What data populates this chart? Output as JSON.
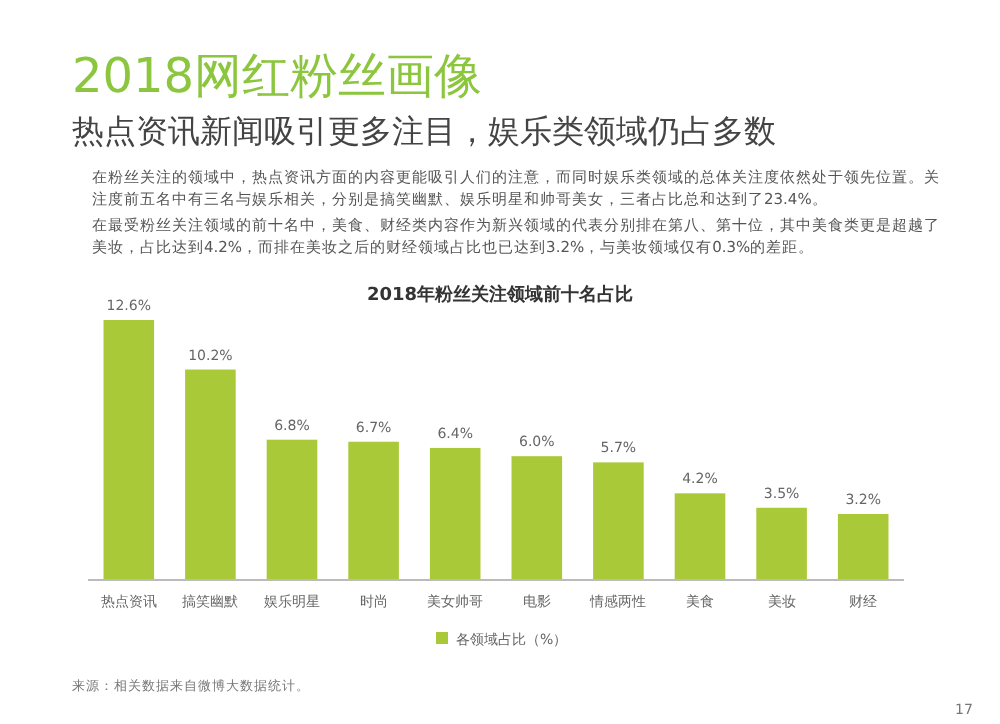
{
  "chart_data": {
    "type": "bar",
    "title": "2018网红粉丝画像",
    "subtitle": "热点资讯新闻吸引更多注目，娱乐类领域仍占多数",
    "annotations": [
      "在粉丝关注的领域中，热点资讯方面的内容更能吸引人们的注意，而同时娱乐类领域的总体关注度依然处于领先位置。关注度前五名中有三名与娱乐相关，分别是搞笑幽默、娱乐明星和帅哥美女，三者占比总和达到了23.4%。",
      "在最受粉丝关注领域的前十名中，美食、财经类内容作为新兴领域的代表分别排在第八、第十位，其中美食类更是超越了美妆，占比达到4.2%，而排在美妆之后的财经领域占比也已达到3.2%，与美妆领域仅有0.3%的差距。",
      "2018年粉丝关注领域前十名占比",
      "来源：相关数据来自微博大数据统计。",
      "17"
    ],
    "categories": [
      "热点资讯",
      "搞笑幽默",
      "娱乐明星",
      "时尚",
      "美女帅哥",
      "电影",
      "情感两性",
      "美食",
      "美妆",
      "财经"
    ],
    "series": [
      {
        "name": "各领域占比（%）",
        "color": "#a9c938",
        "values": [
          12.6,
          10.2,
          6.8,
          6.7,
          6.4,
          6.0,
          5.7,
          4.2,
          3.5,
          3.2
        ],
        "value_labels": [
          "12.6%",
          "10.2%",
          "6.8%",
          "6.7%",
          "6.4%",
          "6.0%",
          "5.7%",
          "4.2%",
          "3.5%",
          "3.2%"
        ]
      }
    ],
    "legend": "bottom"
  }
}
